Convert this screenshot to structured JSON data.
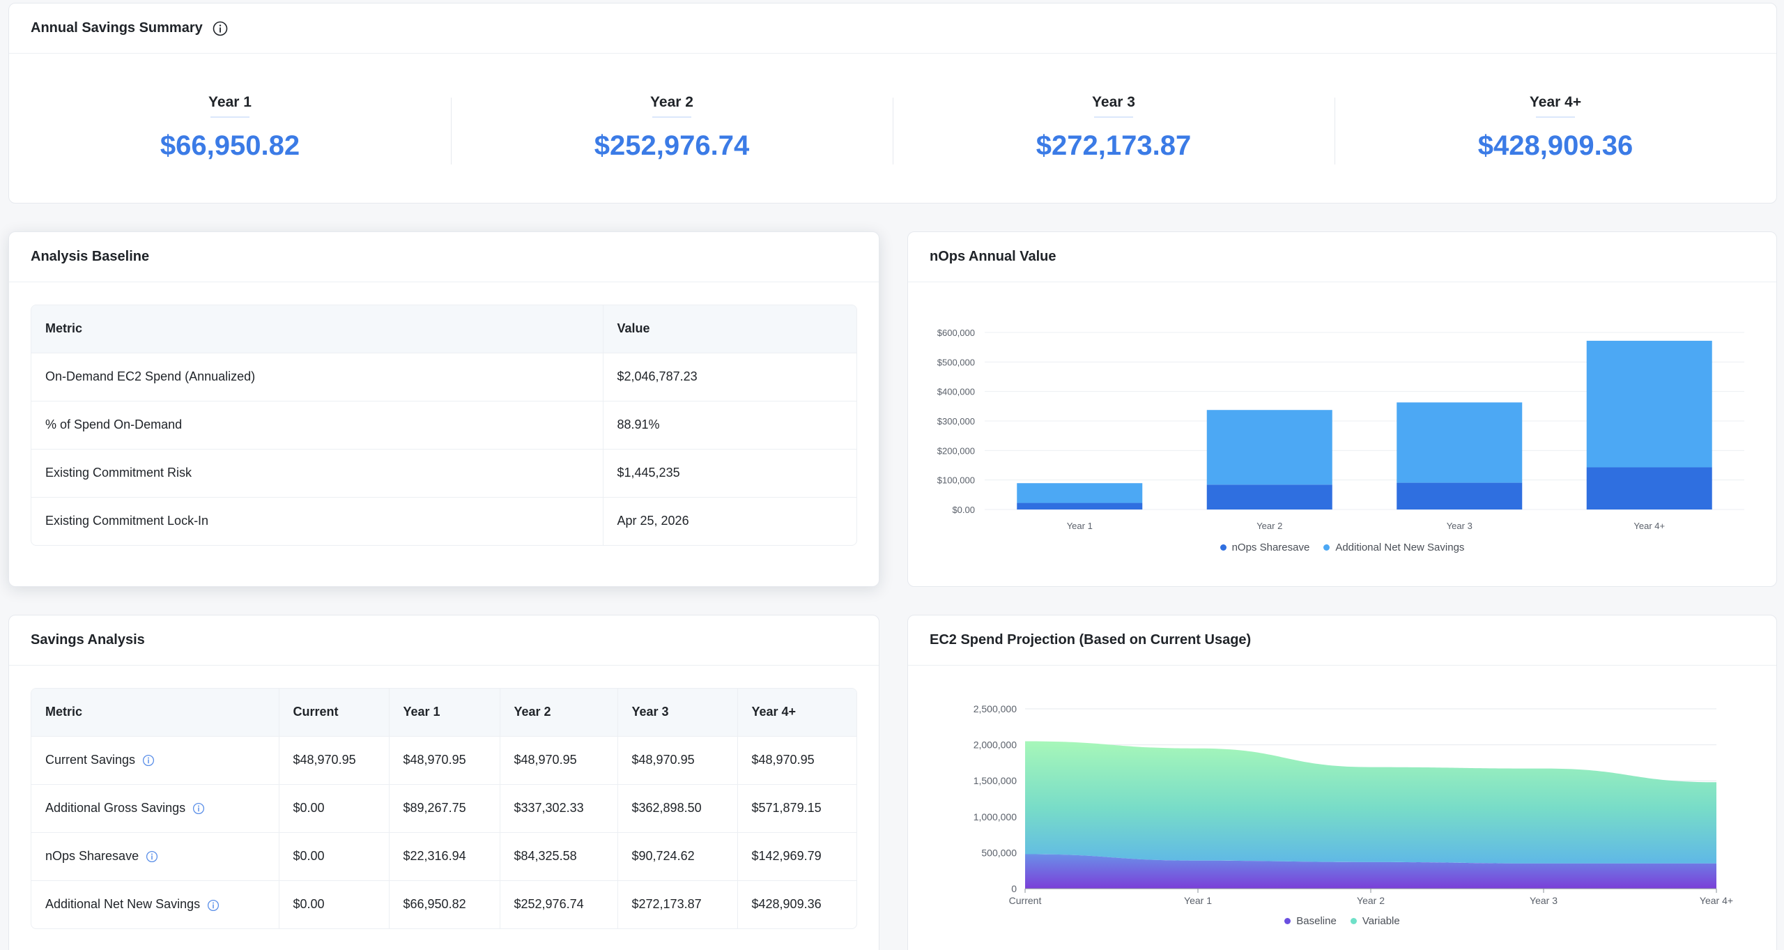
{
  "summary": {
    "title": "Annual Savings Summary",
    "items": [
      {
        "label": "Year 1",
        "value": "$66,950.82"
      },
      {
        "label": "Year 2",
        "value": "$252,976.74"
      },
      {
        "label": "Year 3",
        "value": "$272,173.87"
      },
      {
        "label": "Year 4+",
        "value": "$428,909.36"
      }
    ]
  },
  "baseline": {
    "title": "Analysis Baseline",
    "headers": [
      "Metric",
      "Value"
    ],
    "rows": [
      [
        "On-Demand EC2 Spend (Annualized)",
        "$2,046,787.23"
      ],
      [
        "% of Spend On-Demand",
        "88.91%"
      ],
      [
        "Existing Commitment Risk",
        "$1,445,235"
      ],
      [
        "Existing Commitment Lock-In",
        "Apr 25, 2026"
      ]
    ]
  },
  "savings": {
    "title": "Savings Analysis",
    "headers": [
      "Metric",
      "Current",
      "Year 1",
      "Year 2",
      "Year 3",
      "Year 4+"
    ],
    "rows": [
      {
        "metric": "Current Savings",
        "info": true,
        "values": [
          "$48,970.95",
          "$48,970.95",
          "$48,970.95",
          "$48,970.95",
          "$48,970.95"
        ]
      },
      {
        "metric": "Additional Gross Savings",
        "info": true,
        "values": [
          "$0.00",
          "$89,267.75",
          "$337,302.33",
          "$362,898.50",
          "$571,879.15"
        ]
      },
      {
        "metric": "nOps Sharesave",
        "info": true,
        "values": [
          "$0.00",
          "$22,316.94",
          "$84,325.58",
          "$90,724.62",
          "$142,969.79"
        ]
      },
      {
        "metric": "Additional Net New Savings",
        "info": true,
        "values": [
          "$0.00",
          "$66,950.82",
          "$252,976.74",
          "$272,173.87",
          "$428,909.36"
        ]
      }
    ]
  },
  "annual_chart_title": "nOps Annual Value",
  "projection_chart_title": "EC2 Spend Projection (Based on Current Usage)",
  "colors": {
    "accent": "#3b7be6",
    "sharesave": "#2f6fe0",
    "net_new": "#4ca8f4",
    "baseline": "#6a4fe0",
    "variable": "#6fe0c8"
  },
  "chart_data": [
    {
      "type": "bar",
      "stacked": true,
      "categories": [
        "Year 1",
        "Year 2",
        "Year 3",
        "Year 4+"
      ],
      "series": [
        {
          "name": "nOps Sharesave",
          "values": [
            22316.94,
            84325.58,
            90724.62,
            142969.79
          ]
        },
        {
          "name": "Additional Net New Savings",
          "values": [
            66950.82,
            252976.74,
            272173.87,
            428909.36
          ]
        }
      ],
      "y_ticks": [
        "$0.00",
        "$100,000",
        "$200,000",
        "$300,000",
        "$400,000",
        "$500,000",
        "$600,000"
      ],
      "ylim": [
        0,
        600000
      ],
      "grid": true,
      "legend": "bottom"
    },
    {
      "type": "area",
      "stacked": true,
      "categories": [
        "Current",
        "Year 1",
        "Year 2",
        "Year 3",
        "Year 4+"
      ],
      "series": [
        {
          "name": "Baseline",
          "values": [
            480000,
            390000,
            370000,
            350000,
            350000
          ]
        },
        {
          "name": "Variable",
          "values": [
            1570000,
            1560000,
            1320000,
            1320000,
            1130000
          ]
        }
      ],
      "y_ticks": [
        "0",
        "500,000",
        "1,000,000",
        "1,500,000",
        "2,000,000",
        "2,500,000"
      ],
      "ylim": [
        0,
        2500000
      ],
      "grid": true,
      "legend": "bottom"
    }
  ]
}
